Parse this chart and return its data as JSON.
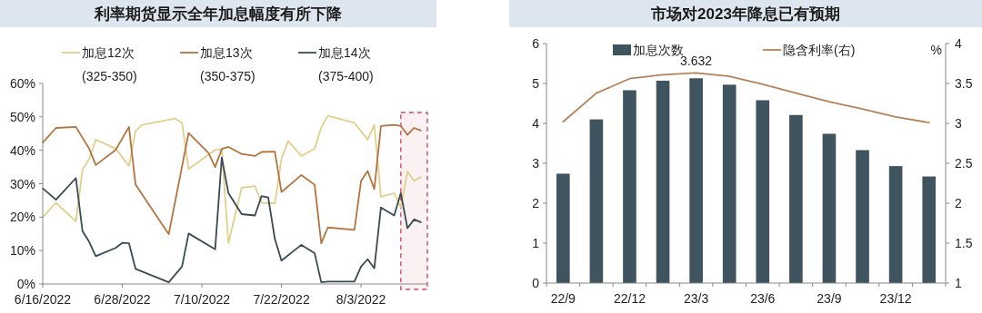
{
  "chart_data": [
    {
      "type": "line",
      "title": "利率期货显示全年加息幅度有所下降",
      "legend": "top",
      "xlim": [
        "2022-06-16",
        "2022-08-13"
      ],
      "xticks": [
        {
          "value": "2022-06-16",
          "label": "6/16/2022"
        },
        {
          "value": "2022-06-28",
          "label": "6/28/2022"
        },
        {
          "value": "2022-07-10",
          "label": "7/10/2022"
        },
        {
          "value": "2022-07-22",
          "label": "7/22/2022"
        },
        {
          "value": "2022-08-03",
          "label": "8/3/2022"
        }
      ],
      "ylim": [
        0,
        60
      ],
      "yticks": [
        {
          "value": 0,
          "label": "0%"
        },
        {
          "value": 10,
          "label": "10%"
        },
        {
          "value": 20,
          "label": "20%"
        },
        {
          "value": 30,
          "label": "30%"
        },
        {
          "value": 40,
          "label": "40%"
        },
        {
          "value": 50,
          "label": "50%"
        },
        {
          "value": 60,
          "label": "60%"
        }
      ],
      "bands": [
        {
          "axis": "x",
          "from": "2022-08-09",
          "to": "2022-08-13",
          "color": "#d04a68"
        }
      ],
      "series": [
        {
          "name": "加息12次\n(325-350)",
          "color": "#e2cf8c",
          "x": [
            "2022-06-16",
            "2022-06-18",
            "2022-06-21",
            "2022-06-22",
            "2022-06-23",
            "2022-06-24",
            "2022-06-27",
            "2022-06-29",
            "2022-06-30",
            "2022-07-01",
            "2022-07-06",
            "2022-07-07",
            "2022-07-08",
            "2022-07-12",
            "2022-07-13",
            "2022-07-14",
            "2022-07-16",
            "2022-07-18",
            "2022-07-19",
            "2022-07-21",
            "2022-07-22",
            "2022-07-23",
            "2022-07-25",
            "2022-07-27",
            "2022-07-28",
            "2022-07-29",
            "2022-08-02",
            "2022-08-04",
            "2022-08-05",
            "2022-08-06",
            "2022-08-08",
            "2022-08-09",
            "2022-08-10",
            "2022-08-11",
            "2022-08-12"
          ],
          "values": [
            20,
            24.3,
            18.7,
            34.2,
            37.4,
            43.2,
            40.5,
            35.3,
            45.8,
            47.6,
            49.5,
            48.2,
            34.4,
            40.1,
            40.3,
            12.2,
            28.8,
            29.3,
            24.3,
            24.1,
            37.4,
            42.8,
            38.3,
            40.5,
            46.8,
            50.3,
            48.2,
            43.2,
            47.6,
            26.1,
            27.2,
            23.0,
            33.6,
            30.8,
            32.0
          ]
        },
        {
          "name": "加息13次\n(350-375)",
          "color": "#b3743f",
          "x": [
            "2022-06-16",
            "2022-06-18",
            "2022-06-21",
            "2022-06-23",
            "2022-06-24",
            "2022-06-27",
            "2022-06-29",
            "2022-06-30",
            "2022-07-05",
            "2022-07-08",
            "2022-07-11",
            "2022-07-12",
            "2022-07-13",
            "2022-07-14",
            "2022-07-16",
            "2022-07-18",
            "2022-07-19",
            "2022-07-21",
            "2022-07-22",
            "2022-07-25",
            "2022-07-27",
            "2022-07-28",
            "2022-07-29",
            "2022-08-02",
            "2022-08-03",
            "2022-08-04",
            "2022-08-05",
            "2022-08-06",
            "2022-08-08",
            "2022-08-09",
            "2022-08-10",
            "2022-08-11",
            "2022-08-12"
          ],
          "values": [
            42.3,
            46.7,
            47.0,
            40.5,
            35.6,
            40.1,
            47.0,
            29.7,
            14.9,
            45.2,
            39.2,
            35.0,
            40.4,
            41.0,
            38.9,
            38.3,
            39.5,
            39.6,
            27.5,
            32.6,
            29.7,
            12.2,
            16.9,
            16.2,
            30.8,
            33.8,
            28.4,
            47.3,
            47.6,
            47.3,
            44.6,
            46.7,
            45.9
          ]
        },
        {
          "name": "加息14次\n(375-400)",
          "color": "#3a4a52",
          "x": [
            "2022-06-16",
            "2022-06-18",
            "2022-06-21",
            "2022-06-22",
            "2022-06-23",
            "2022-06-24",
            "2022-06-27",
            "2022-06-28",
            "2022-06-29",
            "2022-06-30",
            "2022-07-05",
            "2022-07-07",
            "2022-07-08",
            "2022-07-12",
            "2022-07-13",
            "2022-07-14",
            "2022-07-16",
            "2022-07-18",
            "2022-07-19",
            "2022-07-20",
            "2022-07-21",
            "2022-07-22",
            "2022-07-25",
            "2022-07-27",
            "2022-07-28",
            "2022-07-29",
            "2022-08-02",
            "2022-08-03",
            "2022-08-04",
            "2022-08-05",
            "2022-08-06",
            "2022-08-08",
            "2022-08-09",
            "2022-08-10",
            "2022-08-11",
            "2022-08-12"
          ],
          "values": [
            28.6,
            25.2,
            31.7,
            15.8,
            12.6,
            8.3,
            10.8,
            12.3,
            12.2,
            4.5,
            0.5,
            5.2,
            15.1,
            10.4,
            37.8,
            27.2,
            20.9,
            20.5,
            26.3,
            25.9,
            13.5,
            7.0,
            11.7,
            9.2,
            0.5,
            0.7,
            0.7,
            5.2,
            7.4,
            4.7,
            22.9,
            20.5,
            27.2,
            16.7,
            19.3,
            18.5
          ]
        }
      ]
    },
    {
      "type": "bar",
      "title": "市场对2023年降息已有预期",
      "legend": "top",
      "y2label": "%",
      "categories": [
        "22/9",
        null,
        "22/12",
        null,
        "23/3",
        null,
        "23/6",
        null,
        "23/9",
        null,
        "23/12",
        null
      ],
      "ylim": [
        0,
        6
      ],
      "yticks": [
        0,
        1,
        2,
        3,
        4,
        5,
        6
      ],
      "y2lim": [
        1,
        4
      ],
      "y2ticks": [
        1,
        1.5,
        2,
        2.5,
        3,
        3.5,
        4
      ],
      "series": [
        {
          "name": "加息次数",
          "color": "#3f545e",
          "values": [
            2.74,
            4.1,
            4.83,
            5.07,
            5.13,
            4.97,
            4.58,
            4.21,
            3.74,
            3.33,
            2.93,
            2.67
          ]
        },
        {
          "name": "隐含利率(右)",
          "type": "line",
          "axis": "y2",
          "color": "#b5825a",
          "values": [
            3.02,
            3.38,
            3.56,
            3.61,
            3.632,
            3.59,
            3.49,
            3.38,
            3.27,
            3.18,
            3.08,
            3.01
          ],
          "value_labels": [
            null,
            null,
            null,
            null,
            "3.632",
            null,
            null,
            null,
            null,
            null,
            null,
            null
          ]
        }
      ]
    }
  ]
}
